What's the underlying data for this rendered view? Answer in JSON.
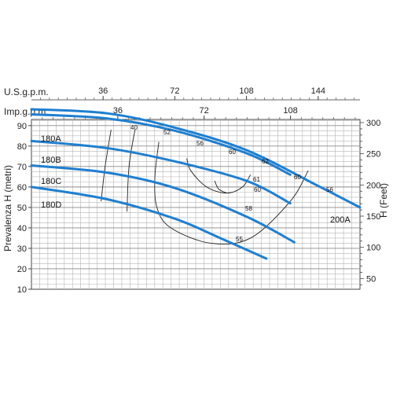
{
  "chart_data": {
    "type": "line",
    "top_axes": [
      {
        "label": "U.S.g.p.m.",
        "ticks": [
          "36",
          "72",
          "108",
          "144"
        ],
        "tick_values": [
          36,
          72,
          108,
          144
        ],
        "range": [
          0,
          165
        ]
      },
      {
        "label": "Imp.g.p.m.",
        "ticks": [
          "36",
          "72",
          "108"
        ],
        "tick_values": [
          36,
          72,
          108
        ],
        "range": [
          0,
          137
        ]
      }
    ],
    "ylabel": "Prevalenza H (metri)",
    "yticks": [
      "10",
      "20",
      "30",
      "40",
      "50",
      "60",
      "70",
      "80",
      "90"
    ],
    "ylim": [
      10,
      93
    ],
    "y2label": "H (Feet)",
    "y2ticks": [
      "50",
      "100",
      "150",
      "200",
      "250",
      "300"
    ],
    "y2lim": [
      32.8,
      305
    ],
    "grid": true,
    "colors": {
      "curve": "#1f7fd0",
      "efficiency": "#222222",
      "grid": "#b5b5b5"
    },
    "series": [
      {
        "name": "180A",
        "points": [
          [
            0,
            95.5
          ],
          [
            38,
            93.5
          ],
          [
            72,
            87.5
          ],
          [
            108,
            76.5
          ],
          [
            130,
            66
          ]
        ]
      },
      {
        "name": "180B",
        "points": [
          [
            0,
            82.5
          ],
          [
            38,
            79
          ],
          [
            72,
            72.5
          ],
          [
            108,
            63
          ],
          [
            130,
            52
          ]
        ]
      },
      {
        "name": "180C",
        "points": [
          [
            0,
            70.5
          ],
          [
            38,
            67
          ],
          [
            72,
            59.5
          ],
          [
            108,
            45.5
          ],
          [
            132,
            33
          ]
        ]
      },
      {
        "name": "180D",
        "points": [
          [
            0,
            60
          ],
          [
            38,
            54
          ],
          [
            72,
            44.5
          ],
          [
            96,
            34.5
          ],
          [
            118,
            25
          ]
        ]
      },
      {
        "name": "200A",
        "points": [
          [
            0,
            98
          ],
          [
            38,
            96
          ],
          [
            72,
            89
          ],
          [
            108,
            78
          ],
          [
            144,
            60.5
          ],
          [
            165,
            50
          ]
        ]
      }
    ],
    "efficiency_labels": [
      "40",
      "52",
      "56",
      "60",
      "62",
      "61",
      "60",
      "60",
      "56",
      "58",
      "55"
    ],
    "efficiency_curves": [
      {
        "label": "40",
        "points": [
          [
            40,
            88
          ],
          [
            37,
            70
          ],
          [
            35,
            53
          ]
        ]
      },
      {
        "label": "52",
        "points": [
          [
            52,
            88
          ],
          [
            49,
            70
          ],
          [
            48,
            48
          ]
        ]
      },
      {
        "label": "56",
        "points": [
          [
            64,
            82
          ],
          [
            62,
            65
          ],
          [
            63,
            50
          ],
          [
            70,
            40
          ],
          [
            90,
            32.5
          ],
          [
            110,
            35
          ],
          [
            130,
            53
          ],
          [
            139,
            68
          ]
        ]
      },
      {
        "label": "60",
        "points": [
          [
            78,
            74
          ],
          [
            80,
            68
          ],
          [
            88,
            60
          ],
          [
            98,
            57
          ],
          [
            106,
            60
          ],
          [
            110,
            66
          ]
        ]
      },
      {
        "label": "61",
        "points": [
          [
            92,
            63
          ],
          [
            94,
            59
          ],
          [
            98,
            57
          ]
        ]
      }
    ]
  },
  "labels": {
    "top_axis_1": "U.S.g.p.m.",
    "top_axis_2": "Imp.g.p.m.",
    "ylabel": "Prevalenza H (metri)",
    "y2label": "H (Feet)",
    "c180A": "180A",
    "c180B": "180B",
    "c180C": "180C",
    "c180D": "180D",
    "c200A": "200A",
    "e40": "40",
    "e52": "52",
    "e56a": "56",
    "e60a": "60",
    "e62": "62",
    "e61": "61",
    "e60b": "60",
    "e60c": "60",
    "e56b": "56",
    "e58": "58",
    "e55": "55"
  }
}
